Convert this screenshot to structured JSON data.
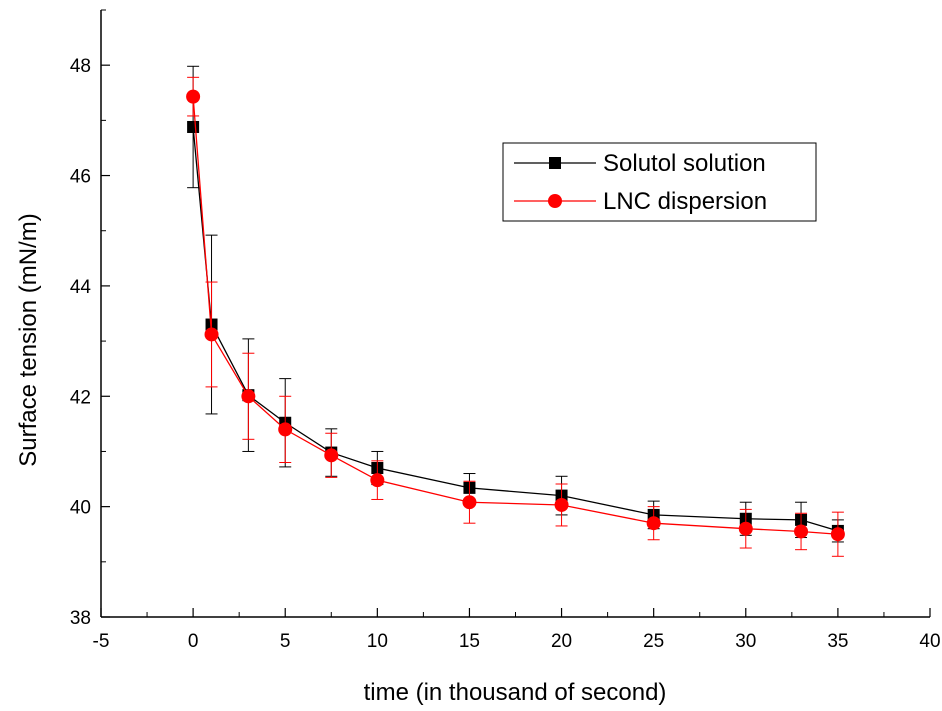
{
  "chart_data": {
    "type": "line",
    "xlabel": "time (in thousand of second)",
    "ylabel": "Surface tension (mN/m)",
    "xlim": [
      -5,
      40
    ],
    "ylim": [
      38,
      49
    ],
    "x_ticks": [
      -5,
      0,
      5,
      10,
      15,
      20,
      25,
      30,
      35,
      40
    ],
    "y_ticks": [
      38,
      40,
      42,
      44,
      46,
      48
    ],
    "grid": false,
    "legend_position": "top-right",
    "series": [
      {
        "name": "Solutol solution",
        "color": "#000000",
        "marker": "square",
        "x": [
          0,
          1,
          3,
          5,
          7.5,
          10,
          15,
          20,
          25,
          30,
          33,
          35
        ],
        "y": [
          46.88,
          43.3,
          42.02,
          41.52,
          40.98,
          40.7,
          40.34,
          40.2,
          39.85,
          39.78,
          39.76,
          39.56
        ],
        "err": [
          1.1,
          1.62,
          1.02,
          0.8,
          0.43,
          0.3,
          0.26,
          0.35,
          0.25,
          0.3,
          0.32,
          0.2
        ]
      },
      {
        "name": "LNC dispersion",
        "color": "#ff0000",
        "marker": "circle",
        "x": [
          0,
          1,
          3,
          5,
          7.5,
          10,
          15,
          20,
          25,
          30,
          33,
          35
        ],
        "y": [
          47.43,
          43.12,
          42.0,
          41.4,
          40.93,
          40.48,
          40.08,
          40.03,
          39.7,
          39.6,
          39.55,
          39.5
        ],
        "err": [
          0.35,
          0.95,
          0.78,
          0.6,
          0.4,
          0.35,
          0.38,
          0.38,
          0.3,
          0.35,
          0.33,
          0.4
        ]
      }
    ]
  }
}
